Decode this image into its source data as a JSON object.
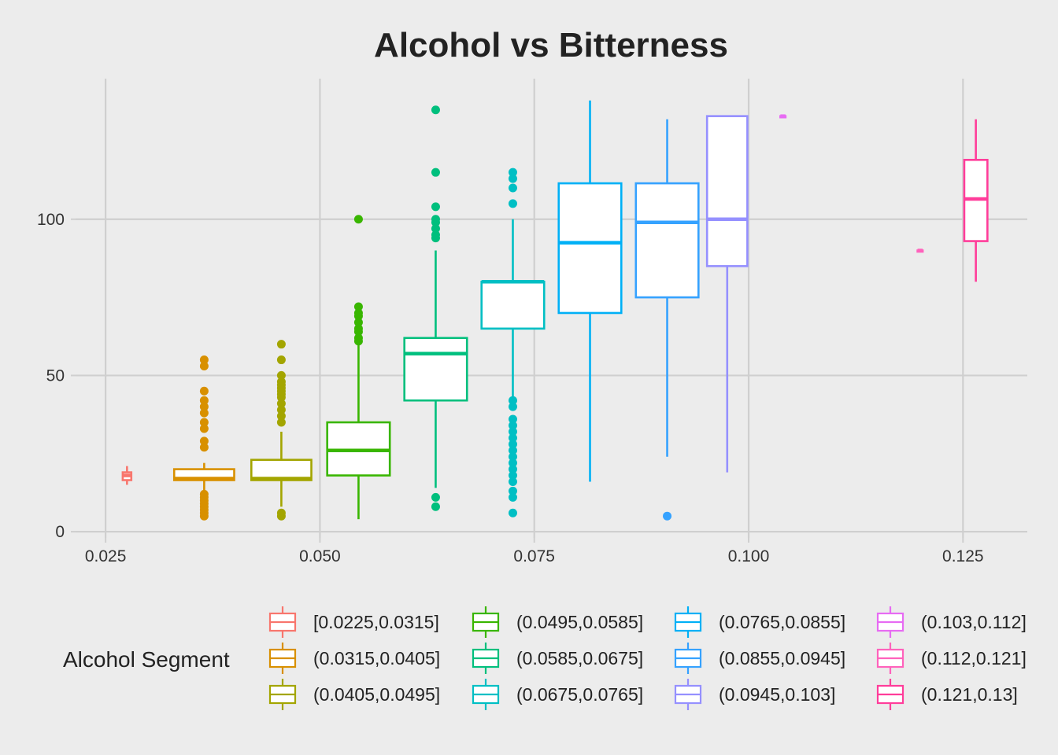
{
  "chart_data": {
    "type": "boxplot",
    "title": "Alcohol vs Bitterness",
    "xlabel": "",
    "ylabel": "",
    "xlim": [
      0.0215,
      0.1325
    ],
    "ylim": [
      -2,
      145
    ],
    "x_ticks": [
      0.025,
      0.05,
      0.075,
      0.1,
      0.125
    ],
    "x_tick_labels": [
      "0.025",
      "0.050",
      "0.075",
      "0.100",
      "0.125"
    ],
    "y_ticks": [
      0,
      50,
      100
    ],
    "y_tick_labels": [
      "0",
      "50",
      "100"
    ],
    "grid": true,
    "legend": {
      "title": "Alcohol Segment",
      "placement": "bottom",
      "columns": 4
    },
    "series": [
      {
        "name": "[0.0225,0.0315]",
        "color": "#F8766D",
        "x": 0.0275,
        "box_width": 0.001,
        "q1": 16.5,
        "median": 18,
        "q3": 19,
        "whisker_low": 15,
        "whisker_high": 21,
        "outliers": []
      },
      {
        "name": "(0.0315,0.0405]",
        "color": "#D89000",
        "x": 0.0365,
        "box_width": 0.007,
        "q1": 16.5,
        "median": 17,
        "q3": 20,
        "whisker_low": 13,
        "whisker_high": 22,
        "outliers": [
          5,
          6,
          7,
          8,
          9,
          10,
          11,
          12,
          27,
          29,
          33,
          35,
          38,
          40,
          42,
          45,
          53,
          55
        ]
      },
      {
        "name": "(0.0405,0.0495]",
        "color": "#A3A500",
        "x": 0.0455,
        "box_width": 0.007,
        "q1": 16.5,
        "median": 17,
        "q3": 23,
        "whisker_low": 8,
        "whisker_high": 32,
        "outliers": [
          5,
          6,
          35,
          37,
          39,
          41,
          43,
          44,
          45,
          46,
          47,
          48,
          50,
          55,
          60
        ]
      },
      {
        "name": "(0.0495,0.0585]",
        "color": "#39B600",
        "x": 0.0545,
        "box_width": 0.0073,
        "q1": 18,
        "median": 26,
        "q3": 35,
        "whisker_low": 4,
        "whisker_high": 60,
        "outliers": [
          61,
          62,
          64,
          65,
          67,
          69,
          70,
          72,
          100
        ]
      },
      {
        "name": "(0.0585,0.0675]",
        "color": "#00BF7D",
        "x": 0.0635,
        "box_width": 0.0073,
        "q1": 42,
        "median": 57,
        "q3": 62,
        "whisker_low": 14,
        "whisker_high": 90,
        "outliers": [
          8,
          11,
          94,
          95,
          97,
          99,
          100,
          104,
          115,
          135
        ]
      },
      {
        "name": "(0.0675,0.0765]",
        "color": "#00BFC4",
        "x": 0.0725,
        "box_width": 0.0073,
        "q1": 65,
        "median": 80,
        "q3": 80,
        "whisker_low": 43,
        "whisker_high": 100,
        "outliers": [
          6,
          11,
          13,
          16,
          18,
          20,
          22,
          24,
          26,
          28,
          30,
          32,
          34,
          36,
          40,
          42,
          105,
          110,
          113,
          115
        ]
      },
      {
        "name": "(0.0765,0.0855]",
        "color": "#00B0F6",
        "x": 0.0815,
        "box_width": 0.0073,
        "q1": 70,
        "median": 92.5,
        "q3": 111.5,
        "whisker_low": 16,
        "whisker_high": 138,
        "outliers": []
      },
      {
        "name": "(0.0855,0.0945]",
        "color": "#35A2FF",
        "x": 0.0905,
        "box_width": 0.0073,
        "q1": 75,
        "median": 99,
        "q3": 111.5,
        "whisker_low": 24,
        "whisker_high": 132,
        "outliers": [
          5
        ]
      },
      {
        "name": "(0.0945,0.103]",
        "color": "#9590FF",
        "x": 0.0975,
        "box_width": 0.0047,
        "q1": 85,
        "median": 100,
        "q3": 133,
        "whisker_low": 19,
        "whisker_high": 133,
        "outliers": []
      },
      {
        "name": "(0.103,0.112]",
        "color": "#E76BF3",
        "x": 0.104,
        "box_width": 0.0006,
        "q1": 133,
        "median": 133,
        "q3": 133,
        "whisker_low": 133,
        "whisker_high": 133,
        "outliers": []
      },
      {
        "name": "(0.112,0.121]",
        "color": "#FF62BC",
        "x": 0.12,
        "box_width": 0.0006,
        "q1": 90,
        "median": 90,
        "q3": 90,
        "whisker_low": 90,
        "whisker_high": 90,
        "outliers": []
      },
      {
        "name": "(0.121,0.13]",
        "color": "#FF3D9A",
        "x": 0.1265,
        "box_width": 0.0027,
        "q1": 93,
        "median": 106.5,
        "q3": 119,
        "whisker_low": 80,
        "whisker_high": 132,
        "outliers": []
      }
    ]
  }
}
